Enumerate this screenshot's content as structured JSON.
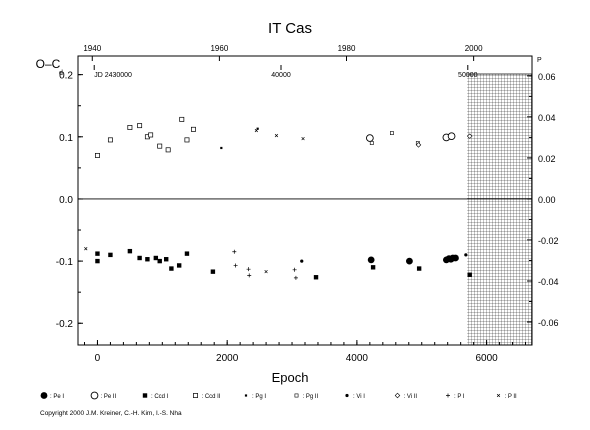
{
  "chart_data": {
    "type": "scatter",
    "title": "IT Cas",
    "ylabel": "O–C",
    "ylabel_unit": "d",
    "xlabel": "Epoch",
    "xlim": [
      -300,
      6700
    ],
    "ylim": [
      -0.235,
      0.23
    ],
    "right_axis": {
      "ticks": [
        0.06,
        0.04,
        0.02,
        0.0,
        -0.02,
        -0.04,
        -0.06
      ],
      "labels": [
        "0.06",
        "0.04",
        "0.02",
        "0.00",
        "-0.02",
        "-0.04",
        "-0.06"
      ],
      "unit": "P"
    },
    "x_ticks": [
      0,
      2000,
      4000,
      6000
    ],
    "x_tick_labels": [
      "0",
      "2000",
      "4000",
      "6000"
    ],
    "y_ticks": [
      0.2,
      0.1,
      0.0,
      -0.1,
      -0.2
    ],
    "y_tick_labels": [
      "0.2",
      "0.1",
      "0.0",
      "-0.1",
      "-0.2"
    ],
    "top_year_axis": {
      "ticks_epoch": [
        -80,
        1880,
        3840,
        5800
      ],
      "labels": [
        "1940",
        "1960",
        "1980",
        "2000"
      ]
    },
    "jd_axis": {
      "ticks_epoch": [
        -50,
        2830,
        5710
      ],
      "labels": [
        "JD 2430000",
        "40000",
        "50000"
      ]
    },
    "future_region_start": 5700,
    "zero_line": true,
    "series": [
      {
        "name": "Pe I",
        "marker": "filled-circle-large",
        "points": [
          [
            4220,
            -0.098
          ],
          [
            4810,
            -0.1
          ],
          [
            5380,
            -0.098
          ],
          [
            5420,
            -0.096
          ],
          [
            5450,
            -0.097
          ],
          [
            5480,
            -0.095
          ],
          [
            5520,
            -0.095
          ]
        ]
      },
      {
        "name": "Pe II",
        "marker": "open-circle-large",
        "points": [
          [
            4200,
            0.098
          ],
          [
            5380,
            0.099
          ],
          [
            5460,
            0.101
          ]
        ]
      },
      {
        "name": "Ccd I",
        "marker": "filled-square",
        "points": [
          [
            0,
            -0.088
          ],
          [
            0,
            -0.1
          ],
          [
            200,
            -0.09
          ],
          [
            500,
            -0.084
          ],
          [
            650,
            -0.095
          ],
          [
            770,
            -0.097
          ],
          [
            900,
            -0.095
          ],
          [
            960,
            -0.1
          ],
          [
            1060,
            -0.097
          ],
          [
            1140,
            -0.112
          ],
          [
            1260,
            -0.107
          ],
          [
            1380,
            -0.088
          ],
          [
            1780,
            -0.117
          ],
          [
            3370,
            -0.126
          ],
          [
            4250,
            -0.11
          ],
          [
            4960,
            -0.112
          ],
          [
            5740,
            -0.122
          ]
        ]
      },
      {
        "name": "Ccd II",
        "marker": "open-square",
        "points": [
          [
            0,
            0.07
          ],
          [
            200,
            0.095
          ],
          [
            500,
            0.115
          ],
          [
            650,
            0.118
          ],
          [
            770,
            0.1
          ],
          [
            820,
            0.103
          ],
          [
            960,
            0.085
          ],
          [
            1090,
            0.079
          ],
          [
            1300,
            0.128
          ],
          [
            1380,
            0.095
          ],
          [
            1480,
            0.112
          ]
        ]
      },
      {
        "name": "Pg I",
        "marker": "small-filled-square",
        "points": [
          [
            1910,
            0.082
          ],
          [
            2470,
            0.113
          ]
        ]
      },
      {
        "name": "Pg II",
        "marker": "small-open-square",
        "points": [
          [
            4230,
            0.09
          ],
          [
            4540,
            0.106
          ],
          [
            4940,
            0.09
          ]
        ]
      },
      {
        "name": "Vi I",
        "marker": "filled-circle-small",
        "points": [
          [
            3150,
            -0.1
          ],
          [
            5680,
            -0.09
          ]
        ]
      },
      {
        "name": "Vi II",
        "marker": "open-diamond",
        "points": [
          [
            4950,
            0.087
          ],
          [
            5740,
            0.101
          ]
        ]
      },
      {
        "name": "P I",
        "marker": "plus",
        "points": [
          [
            2110,
            -0.085
          ],
          [
            2130,
            -0.107
          ],
          [
            2330,
            -0.113
          ],
          [
            2340,
            -0.123
          ],
          [
            3040,
            -0.114
          ],
          [
            3060,
            -0.127
          ]
        ]
      },
      {
        "name": "P II",
        "marker": "cross",
        "points": [
          [
            -180,
            -0.08
          ],
          [
            2450,
            0.11
          ],
          [
            2760,
            0.102
          ],
          [
            3170,
            0.097
          ],
          [
            2600,
            -0.117
          ]
        ]
      }
    ],
    "legend": [
      {
        "symbol": "filled-circle-large",
        "label": ": Pe I"
      },
      {
        "symbol": "open-circle-large",
        "label": ": Pe II"
      },
      {
        "symbol": "filled-square",
        "label": ": Ccd I"
      },
      {
        "symbol": "open-square",
        "label": ": Ccd II"
      },
      {
        "symbol": "small-filled-square",
        "label": ": Pg I"
      },
      {
        "symbol": "small-open-square",
        "label": ": Pg II"
      },
      {
        "symbol": "filled-circle-small",
        "label": ": Vi I"
      },
      {
        "symbol": "open-diamond",
        "label": ": Vi II"
      },
      {
        "symbol": "plus",
        "label": ": P I"
      },
      {
        "symbol": "cross",
        "label": ": P II"
      }
    ],
    "legend_placement": "bottom",
    "copyright": "Copyright 2000 J.M. Kreiner, C.-H. Kim, I.-S. Nha"
  }
}
